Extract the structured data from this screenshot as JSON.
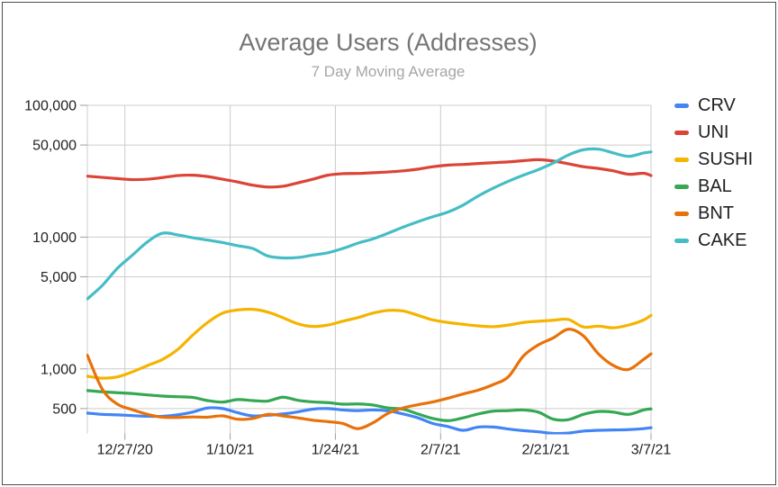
{
  "header": {
    "title": "Average Users (Addresses)",
    "subtitle": "7 Day Moving Average"
  },
  "ui_colors": {
    "background": "#ffffff",
    "frame_border": "#4d4d4d",
    "title": "#757575",
    "subtitle": "#a6a6a6",
    "axis_label": "#202124",
    "legend_label": "#202124",
    "gridline": "#cccccc",
    "tick": "#9e9e9e"
  },
  "chart_data": {
    "type": "line",
    "title": "Average Users (Addresses)",
    "subtitle": "7 Day Moving Average",
    "y_scale": "log",
    "ylim": [
      326,
      100000
    ],
    "grid": true,
    "legend_position": "right",
    "start_date": "12/22/20",
    "end_date": "3/7/21",
    "x_domain_days": [
      0,
      75
    ],
    "sample_interval_days": 2,
    "y_ticks": [
      {
        "label": "100,000",
        "value": 100000
      },
      {
        "label": "50,000",
        "value": 50000
      },
      {
        "label": "10,000",
        "value": 10000
      },
      {
        "label": "5,000",
        "value": 5000
      },
      {
        "label": "1,000",
        "value": 1000
      },
      {
        "label": "500",
        "value": 500
      }
    ],
    "x_ticks": [
      {
        "label": "12/27/20",
        "day": 5
      },
      {
        "label": "1/10/21",
        "day": 19
      },
      {
        "label": "1/24/21",
        "day": 33
      },
      {
        "label": "2/7/21",
        "day": 47
      },
      {
        "label": "2/21/21",
        "day": 61
      },
      {
        "label": "3/7/21",
        "day": 75
      }
    ],
    "sample_days": [
      0,
      2,
      4,
      6,
      8,
      10,
      12,
      14,
      16,
      18,
      20,
      22,
      24,
      26,
      28,
      30,
      32,
      34,
      36,
      38,
      40,
      42,
      44,
      46,
      48,
      50,
      52,
      54,
      56,
      58,
      60,
      62,
      64,
      66,
      68,
      70,
      72,
      74,
      75
    ],
    "series": [
      {
        "name": "CRV",
        "color": "#4285f4",
        "values": [
          462,
          452,
          448,
          442,
          437,
          437,
          448,
          470,
          505,
          500,
          465,
          440,
          445,
          455,
          472,
          495,
          500,
          488,
          482,
          488,
          480,
          455,
          425,
          385,
          365,
          342,
          362,
          362,
          350,
          340,
          333,
          324,
          326,
          337,
          342,
          344,
          346,
          352,
          358
        ]
      },
      {
        "name": "UNI",
        "color": "#db4437",
        "values": [
          29000,
          28400,
          27800,
          27300,
          27500,
          28300,
          29300,
          29500,
          28800,
          27500,
          26200,
          24800,
          24000,
          24300,
          25800,
          27500,
          29500,
          30300,
          30400,
          30800,
          31200,
          31800,
          32800,
          34200,
          35200,
          35600,
          36200,
          36700,
          37200,
          38000,
          38700,
          37800,
          36000,
          34200,
          33200,
          31800,
          30000,
          30500,
          29300
        ]
      },
      {
        "name": "SUSHI",
        "color": "#f4b400",
        "values": [
          880,
          850,
          870,
          950,
          1060,
          1180,
          1400,
          1800,
          2250,
          2650,
          2800,
          2830,
          2700,
          2450,
          2200,
          2100,
          2150,
          2300,
          2450,
          2650,
          2780,
          2750,
          2550,
          2350,
          2250,
          2180,
          2120,
          2090,
          2150,
          2250,
          2300,
          2340,
          2370,
          2080,
          2110,
          2050,
          2150,
          2350,
          2550
        ]
      },
      {
        "name": "BAL",
        "color": "#34a853",
        "values": [
          685,
          670,
          660,
          650,
          635,
          622,
          615,
          608,
          575,
          560,
          585,
          575,
          570,
          610,
          578,
          562,
          555,
          540,
          542,
          532,
          505,
          495,
          455,
          420,
          405,
          425,
          455,
          478,
          482,
          488,
          470,
          415,
          412,
          452,
          475,
          470,
          452,
          488,
          497
        ]
      },
      {
        "name": "BNT",
        "color": "#e8710a",
        "values": [
          1270,
          700,
          540,
          490,
          452,
          430,
          428,
          432,
          430,
          440,
          415,
          420,
          452,
          440,
          425,
          408,
          398,
          385,
          352,
          390,
          460,
          505,
          535,
          562,
          600,
          645,
          690,
          760,
          870,
          1250,
          1520,
          1720,
          2000,
          1780,
          1300,
          1060,
          990,
          1180,
          1300
        ]
      },
      {
        "name": "CAKE",
        "color": "#46bdc6",
        "values": [
          3400,
          4300,
          5800,
          7300,
          9200,
          10700,
          10400,
          9900,
          9500,
          9100,
          8600,
          8200,
          7200,
          6950,
          7000,
          7300,
          7600,
          8200,
          9000,
          9700,
          10700,
          11900,
          13100,
          14300,
          15500,
          17500,
          20500,
          23500,
          26500,
          29500,
          32500,
          36500,
          42000,
          46000,
          46500,
          43500,
          41000,
          43500,
          44300
        ]
      }
    ]
  }
}
